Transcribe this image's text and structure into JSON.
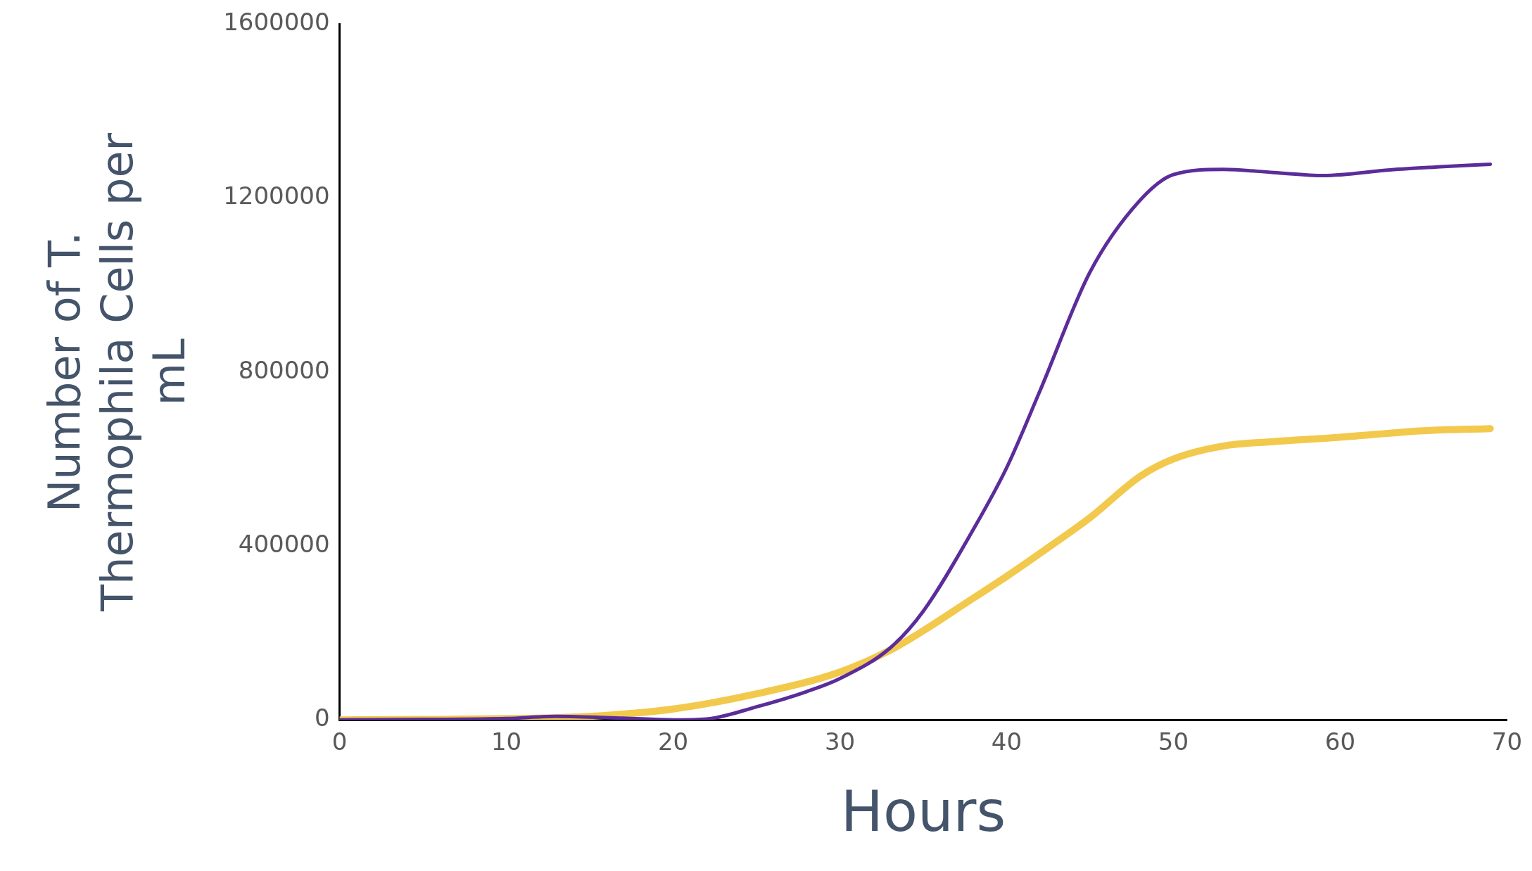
{
  "chart_data": {
    "type": "line",
    "xlabel": "Hours",
    "ylabel": "Number of T. Thermophila Cells per mL",
    "xlim": [
      0,
      70
    ],
    "xticks": [
      0,
      10,
      20,
      30,
      40,
      50,
      60,
      70
    ],
    "ylim": [
      0,
      1600000
    ],
    "yticks": [
      0,
      400000,
      800000,
      1200000,
      1600000
    ],
    "grid": false,
    "legend": false,
    "marker": "none",
    "line_style": "solid",
    "series": [
      {
        "color": "#5b2c9a",
        "x": [
          0,
          5,
          10,
          13,
          17,
          20,
          22,
          25,
          28,
          30,
          33,
          35,
          38,
          40,
          42,
          45,
          48,
          50,
          53,
          56,
          59,
          63,
          66,
          69
        ],
        "values": [
          0,
          1000,
          3000,
          8000,
          4000,
          0,
          2000,
          30000,
          65000,
          95000,
          165000,
          250000,
          438000,
          580000,
          757000,
          1030000,
          1195000,
          1254000,
          1266000,
          1259000,
          1252000,
          1265000,
          1272000,
          1278000
        ]
      },
      {
        "color": "#f2c94c",
        "x": [
          0,
          5,
          10,
          15,
          20,
          25,
          30,
          33,
          35,
          38,
          40,
          43,
          45,
          48,
          50,
          53,
          56,
          60,
          65,
          69
        ],
        "values": [
          0,
          1000,
          3000,
          8000,
          25000,
          60000,
          110000,
          160000,
          205000,
          280000,
          330000,
          410000,
          465000,
          560000,
          600000,
          630000,
          640000,
          650000,
          665000,
          670000
        ]
      }
    ]
  }
}
